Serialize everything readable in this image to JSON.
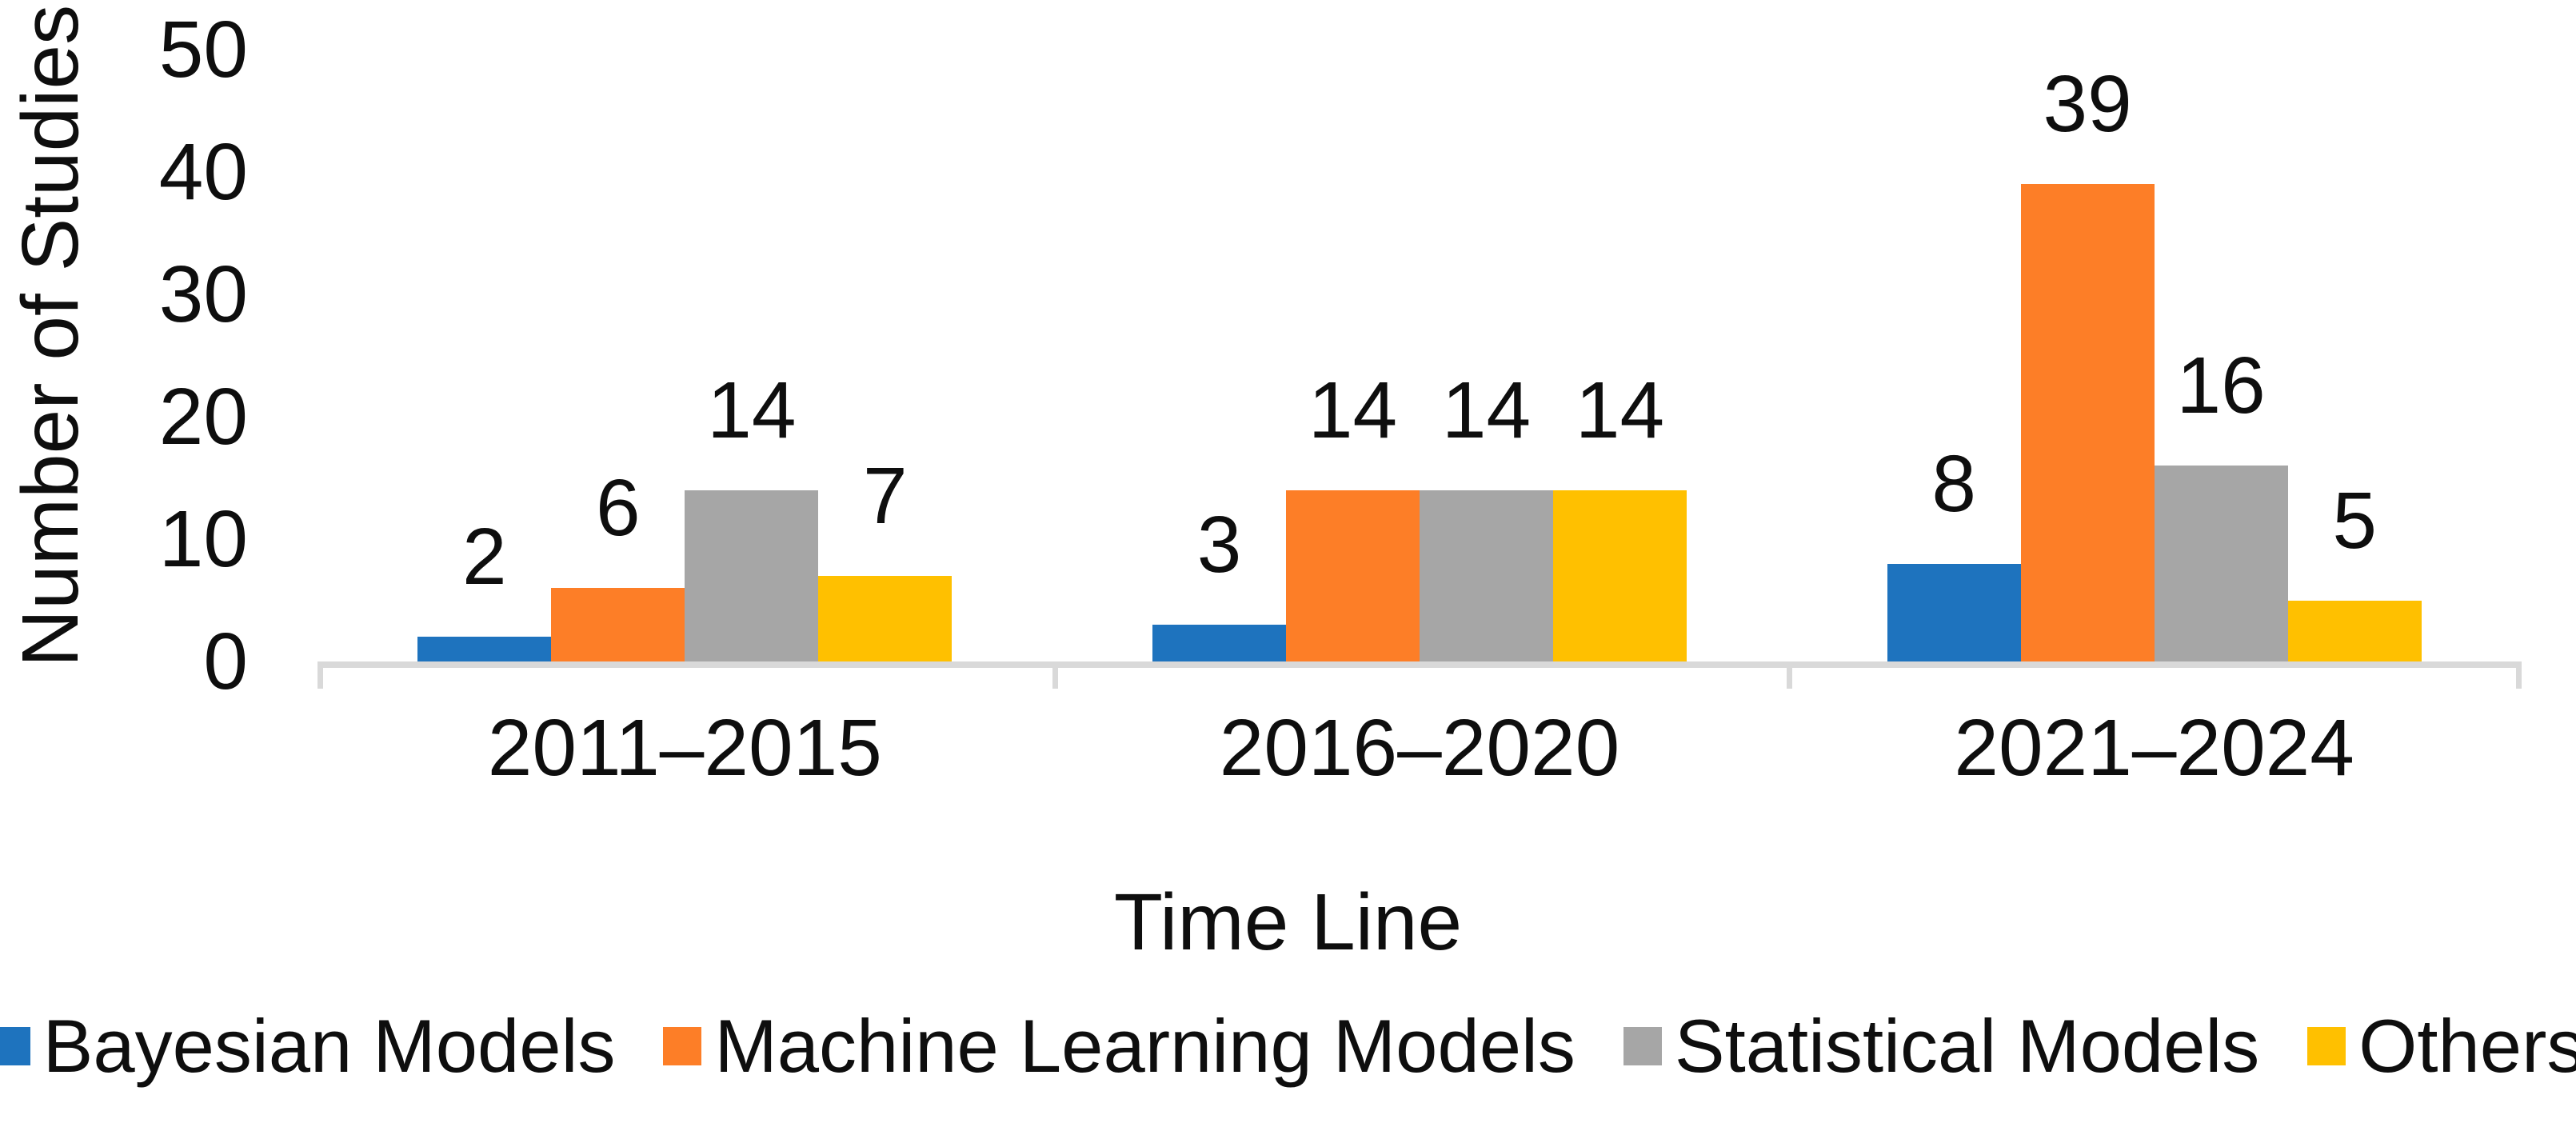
{
  "chart_data": {
    "type": "bar",
    "title": "",
    "xlabel": "Time Line",
    "ylabel": "Number of Studies",
    "categories": [
      "2011–2015",
      "2016–2020",
      "2021–2024"
    ],
    "series": [
      {
        "name": "Bayesian Models",
        "color": "#1E73BE",
        "values": [
          2,
          3,
          8
        ]
      },
      {
        "name": "Machine Learning Models",
        "color": "#FD7E27",
        "values": [
          6,
          14,
          39
        ]
      },
      {
        "name": "Statistical Models",
        "color": "#A6A6A6",
        "values": [
          14,
          14,
          16
        ]
      },
      {
        "name": "Others",
        "color": "#FFC000",
        "values": [
          7,
          14,
          5
        ]
      }
    ],
    "ylim": [
      0,
      50
    ],
    "yticks": [
      0,
      10,
      20,
      30,
      40,
      50
    ],
    "grid": false,
    "legend_position": "bottom",
    "data_labels": true,
    "axis_color": "#D9D9D9",
    "text_color": "#0e0e0e"
  }
}
